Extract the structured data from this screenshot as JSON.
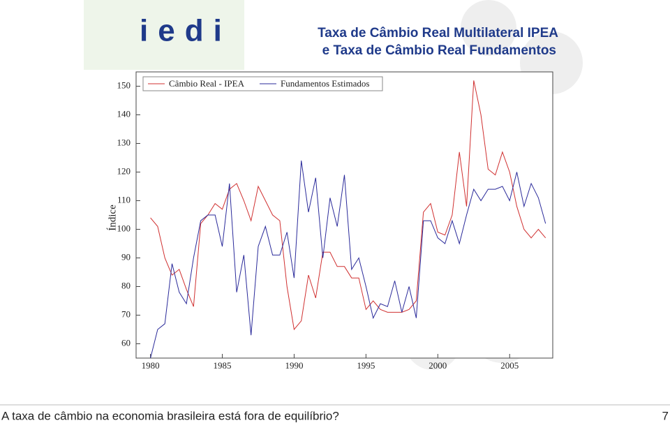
{
  "brand": "iedi",
  "chart_data": {
    "type": "line",
    "title": [
      "Taxa de Câmbio Real Multilateral IPEA",
      "e Taxa de Câmbio Real Fundamentos"
    ],
    "y_label": "Índice",
    "x": [
      1980,
      1980.5,
      1981,
      1981.5,
      1982,
      1982.5,
      1983,
      1983.5,
      1984,
      1984.5,
      1985,
      1985.5,
      1986,
      1986.5,
      1987,
      1987.5,
      1988,
      1988.5,
      1989,
      1989.5,
      1990,
      1990.5,
      1991,
      1991.5,
      1992,
      1992.5,
      1993,
      1993.5,
      1994,
      1994.5,
      1995,
      1995.5,
      1996,
      1996.5,
      1997,
      1997.5,
      1998,
      1998.5,
      1999,
      1999.5,
      2000,
      2000.5,
      2001,
      2001.5,
      2002,
      2002.5,
      2003,
      2003.5,
      2004,
      2004.5,
      2005,
      2005.5,
      2006,
      2006.5,
      2007,
      2007.5
    ],
    "series": [
      {
        "name": "Câmbio Real - IPEA",
        "color": "#d03030",
        "values": [
          104,
          101,
          90,
          84,
          86,
          79,
          73,
          102,
          105,
          109,
          107,
          114,
          116,
          110,
          103,
          115,
          110,
          105,
          103,
          80,
          65,
          68,
          84,
          76,
          92,
          92,
          87,
          87,
          83,
          83,
          72,
          75,
          72,
          71,
          71,
          71,
          72,
          75,
          106,
          109,
          99,
          98,
          105,
          127,
          108,
          152,
          140,
          121,
          119,
          127,
          120,
          108,
          100,
          97,
          100,
          97
        ]
      },
      {
        "name": "Fundamentos Estimados",
        "color": "#2a2a9a",
        "values": [
          55,
          65,
          67,
          88,
          78,
          74,
          90,
          103,
          105,
          105,
          94,
          116,
          78,
          91,
          63,
          94,
          101,
          91,
          91,
          99,
          83,
          124,
          106,
          118,
          90,
          111,
          101,
          119,
          86,
          90,
          80,
          69,
          74,
          73,
          82,
          71,
          80,
          69,
          103,
          103,
          97,
          95,
          103,
          95,
          105,
          114,
          110,
          114,
          114,
          115,
          110,
          120,
          108,
          116,
          111,
          102
        ]
      }
    ],
    "xlim": [
      1979,
      2008
    ],
    "xticks": [
      1980,
      1985,
      1990,
      1995,
      2000,
      2005
    ],
    "ylim": [
      55,
      155
    ],
    "yticks": [
      60,
      70,
      80,
      90,
      100,
      110,
      120,
      130,
      140,
      150
    ],
    "legend": "top-left"
  },
  "footer": {
    "text": "A taxa de câmbio na economia brasileira está fora de equilíbrio?",
    "page": "7"
  }
}
